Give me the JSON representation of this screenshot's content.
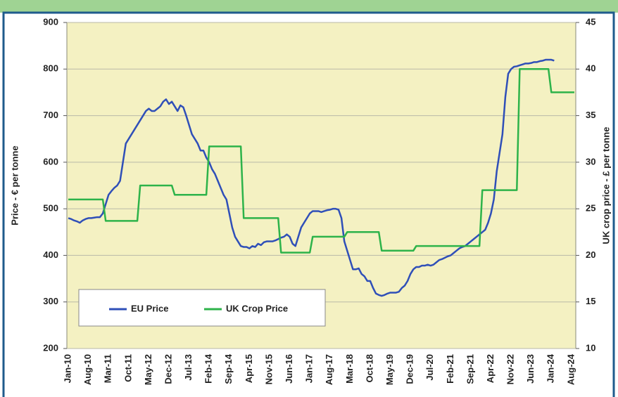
{
  "chart_data": {
    "type": "line",
    "y_axis_label": "Price - € per tonne",
    "y2_axis_label": "UK crop price - £ per tonne",
    "categories": [
      "Jan-10",
      null,
      null,
      null,
      null,
      null,
      null,
      "Aug-10",
      null,
      null,
      null,
      null,
      null,
      null,
      "Mar-11",
      null,
      null,
      null,
      null,
      null,
      null,
      "Oct-11",
      null,
      null,
      null,
      null,
      null,
      null,
      "May-12",
      null,
      null,
      null,
      null,
      null,
      null,
      "Dec-12",
      null,
      null,
      null,
      null,
      null,
      null,
      "Jul-13",
      null,
      null,
      null,
      null,
      null,
      null,
      "Feb-14",
      null,
      null,
      null,
      null,
      null,
      null,
      "Sep-14",
      null,
      null,
      null,
      null,
      null,
      null,
      "Apr-15",
      null,
      null,
      null,
      null,
      null,
      null,
      "Nov-15",
      null,
      null,
      null,
      null,
      null,
      null,
      "Jun-16",
      null,
      null,
      null,
      null,
      null,
      null,
      "Jan-17",
      null,
      null,
      null,
      null,
      null,
      null,
      "Aug-17",
      null,
      null,
      null,
      null,
      null,
      null,
      "Mar-18",
      null,
      null,
      null,
      null,
      null,
      null,
      "Oct-18",
      null,
      null,
      null,
      null,
      null,
      null,
      "May-19",
      null,
      null,
      null,
      null,
      null,
      null,
      "Dec-19",
      null,
      null,
      null,
      null,
      null,
      null,
      "Jul-20",
      null,
      null,
      null,
      null,
      null,
      null,
      "Feb-21",
      null,
      null,
      null,
      null,
      null,
      null,
      "Sep-21",
      null,
      null,
      null,
      null,
      null,
      null,
      "Apr-22",
      null,
      null,
      null,
      null,
      null,
      null,
      "Nov-22",
      null,
      null,
      null,
      null,
      null,
      null,
      "Jun-23",
      null,
      null,
      null,
      null,
      null,
      null,
      "Jan-24",
      null,
      null,
      null,
      null,
      null,
      null,
      "Aug-24",
      null
    ],
    "series": [
      {
        "name": "EU Price",
        "color": "#2f4fb8",
        "axis": "y",
        "values": [
          480,
          478,
          475,
          473,
          470,
          475,
          478,
          480,
          480,
          481,
          482,
          482,
          490,
          510,
          530,
          538,
          545,
          550,
          560,
          600,
          640,
          650,
          660,
          670,
          680,
          690,
          700,
          710,
          715,
          710,
          710,
          715,
          720,
          730,
          735,
          725,
          730,
          720,
          710,
          722,
          718,
          700,
          680,
          660,
          650,
          640,
          625,
          625,
          610,
          600,
          585,
          575,
          560,
          545,
          530,
          520,
          490,
          460,
          440,
          430,
          420,
          418,
          418,
          415,
          420,
          418,
          425,
          422,
          428,
          430,
          430,
          430,
          432,
          435,
          438,
          440,
          445,
          440,
          425,
          420,
          440,
          460,
          470,
          480,
          490,
          495,
          495,
          495,
          493,
          495,
          497,
          498,
          500,
          500,
          498,
          480,
          430,
          410,
          390,
          370,
          370,
          372,
          360,
          355,
          345,
          345,
          330,
          318,
          315,
          313,
          315,
          318,
          320,
          320,
          320,
          322,
          330,
          335,
          345,
          360,
          370,
          375,
          375,
          378,
          378,
          380,
          378,
          380,
          385,
          390,
          392,
          395,
          398,
          400,
          405,
          410,
          415,
          418,
          420,
          425,
          430,
          435,
          440,
          445,
          450,
          455,
          470,
          490,
          520,
          580,
          620,
          660,
          740,
          790,
          800,
          805,
          806,
          808,
          810,
          812,
          812,
          813,
          815,
          815,
          817,
          818,
          820,
          820,
          820,
          818,
          null,
          null,
          null,
          null,
          null,
          null,
          null
        ]
      },
      {
        "name": "UK Crop Price",
        "color": "#2db34a",
        "axis": "y2",
        "values": [
          26,
          26,
          26,
          26,
          26,
          26,
          26,
          26,
          26,
          26,
          26,
          26,
          26,
          23.7,
          23.7,
          23.7,
          23.7,
          23.7,
          23.7,
          23.7,
          23.7,
          23.7,
          23.7,
          23.7,
          23.7,
          27.5,
          27.5,
          27.5,
          27.5,
          27.5,
          27.5,
          27.5,
          27.5,
          27.5,
          27.5,
          27.5,
          27.5,
          26.5,
          26.5,
          26.5,
          26.5,
          26.5,
          26.5,
          26.5,
          26.5,
          26.5,
          26.5,
          26.5,
          26.5,
          31.7,
          31.7,
          31.7,
          31.7,
          31.7,
          31.7,
          31.7,
          31.7,
          31.7,
          31.7,
          31.7,
          31.7,
          24,
          24,
          24,
          24,
          24,
          24,
          24,
          24,
          24,
          24,
          24,
          24,
          24,
          20.3,
          20.3,
          20.3,
          20.3,
          20.3,
          20.3,
          20.3,
          20.3,
          20.3,
          20.3,
          20.3,
          22,
          22,
          22,
          22,
          22,
          22,
          22,
          22,
          22,
          22,
          22,
          22,
          22.5,
          22.5,
          22.5,
          22.5,
          22.5,
          22.5,
          22.5,
          22.5,
          22.5,
          22.5,
          22.5,
          22.5,
          20.5,
          20.5,
          20.5,
          20.5,
          20.5,
          20.5,
          20.5,
          20.5,
          20.5,
          20.5,
          20.5,
          20.5,
          21,
          21,
          21,
          21,
          21,
          21,
          21,
          21,
          21,
          21,
          21,
          21,
          21,
          21,
          21,
          21,
          21,
          21,
          21,
          21,
          21,
          21,
          21,
          27,
          27,
          27,
          27,
          27,
          27,
          27,
          27,
          27,
          27,
          27,
          27,
          27,
          40,
          40,
          40,
          40,
          40,
          40,
          40,
          40,
          40,
          40,
          40,
          37.5,
          37.5,
          37.5,
          37.5,
          37.5,
          37.5,
          37.5,
          37.5,
          37.5
        ]
      }
    ],
    "ylim": [
      200,
      900
    ],
    "yticks": [
      200,
      300,
      400,
      500,
      600,
      700,
      800,
      900
    ],
    "y2lim": [
      10,
      45
    ],
    "y2ticks": [
      10,
      15,
      20,
      25,
      30,
      35,
      40,
      45
    ],
    "grid": true,
    "legend": "lower left"
  }
}
